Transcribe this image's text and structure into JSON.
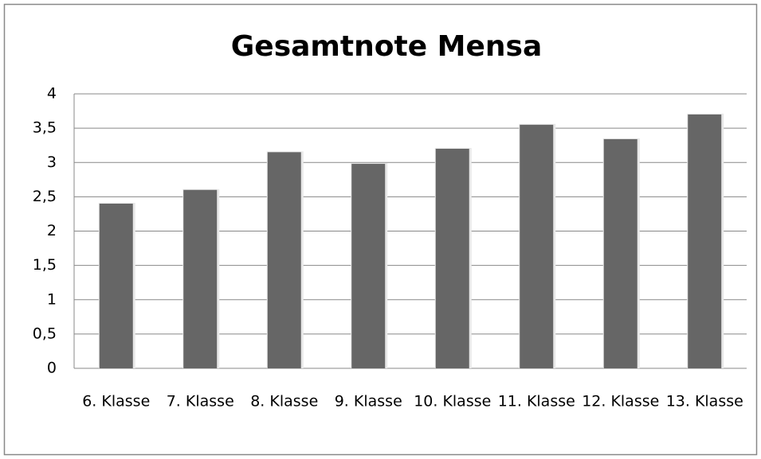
{
  "chart_data": {
    "type": "bar",
    "title": "Gesamtnote Mensa",
    "categories": [
      "6. Klasse",
      "7. Klasse",
      "8. Klasse",
      "9. Klasse",
      "10. Klasse",
      "11. Klasse",
      "12. Klasse",
      "13. Klasse"
    ],
    "values": [
      2.4,
      2.6,
      3.15,
      2.98,
      3.2,
      3.55,
      3.34,
      3.7
    ],
    "color": "#666666",
    "ylim": [
      0,
      4
    ],
    "yticks": [
      0,
      {
        "value": 0.5,
        "label": "0,5"
      },
      1,
      {
        "value": 1.5,
        "label": "1,5"
      },
      2,
      {
        "value": 2.5,
        "label": "2,5"
      },
      3,
      {
        "value": 3.5,
        "label": "3,5"
      },
      4
    ],
    "grid": true
  }
}
